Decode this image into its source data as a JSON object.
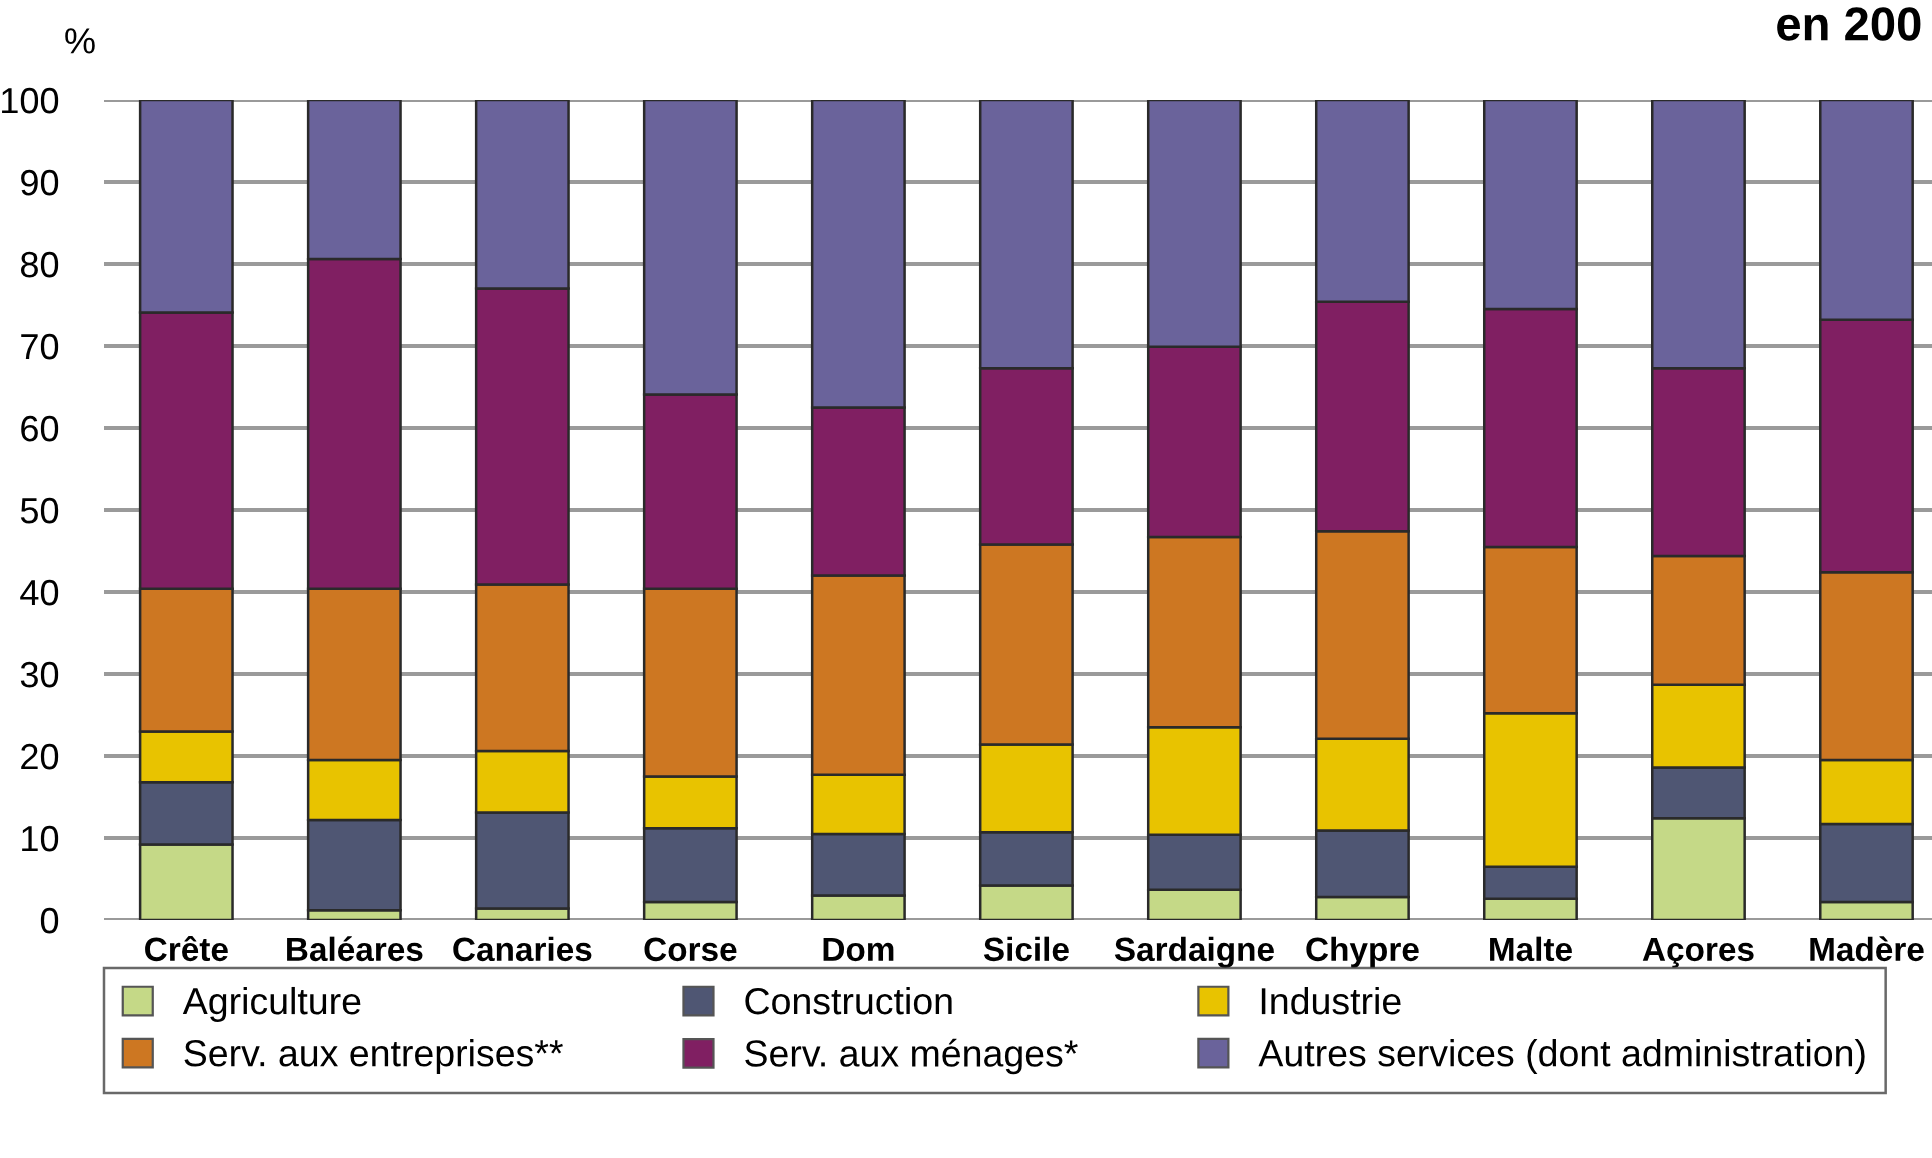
{
  "chart_data": {
    "type": "bar",
    "stacked": true,
    "title": "en 200",
    "ylabel": "%",
    "categories": [
      "Crête",
      "Baléares",
      "Canaries",
      "Corse",
      "Dom",
      "Sicile",
      "Sardaigne",
      "Chypre",
      "Malte",
      "Açores",
      "Madère"
    ],
    "series": [
      {
        "name": "Agriculture",
        "color": "#c5d987",
        "values": [
          9.2,
          1.2,
          1.4,
          2.2,
          3.0,
          4.2,
          3.7,
          2.8,
          2.6,
          12.4,
          2.2
        ]
      },
      {
        "name": "Construction",
        "color": "#4f5673",
        "values": [
          7.6,
          11.0,
          11.7,
          9.0,
          7.5,
          6.5,
          6.7,
          8.1,
          3.9,
          6.2,
          9.5
        ]
      },
      {
        "name": "Industrie",
        "color": "#e8c300",
        "values": [
          6.2,
          7.3,
          7.5,
          6.3,
          7.2,
          10.7,
          13.1,
          11.2,
          18.7,
          10.1,
          7.8
        ]
      },
      {
        "name": "Serv. aux entreprises**",
        "color": "#cd7722",
        "values": [
          17.4,
          20.9,
          20.3,
          22.9,
          24.3,
          24.4,
          23.2,
          25.3,
          20.3,
          15.7,
          22.9
        ]
      },
      {
        "name": "Serv. aux ménages*",
        "color": "#801f62",
        "values": [
          33.7,
          40.2,
          36.1,
          23.7,
          20.5,
          21.5,
          23.2,
          28.0,
          29.0,
          22.9,
          30.8
        ]
      },
      {
        "name": "Autres services (dont administration)",
        "color": "#6a639b",
        "values": [
          25.9,
          19.4,
          23.0,
          35.9,
          37.5,
          32.7,
          30.1,
          24.6,
          25.5,
          32.7,
          26.8
        ]
      }
    ],
    "ylim": [
      0,
      100
    ],
    "yticks": [
      0,
      10,
      20,
      30,
      40,
      50,
      60,
      70,
      80,
      90,
      100
    ],
    "grid": "y",
    "legend": "bottom"
  }
}
